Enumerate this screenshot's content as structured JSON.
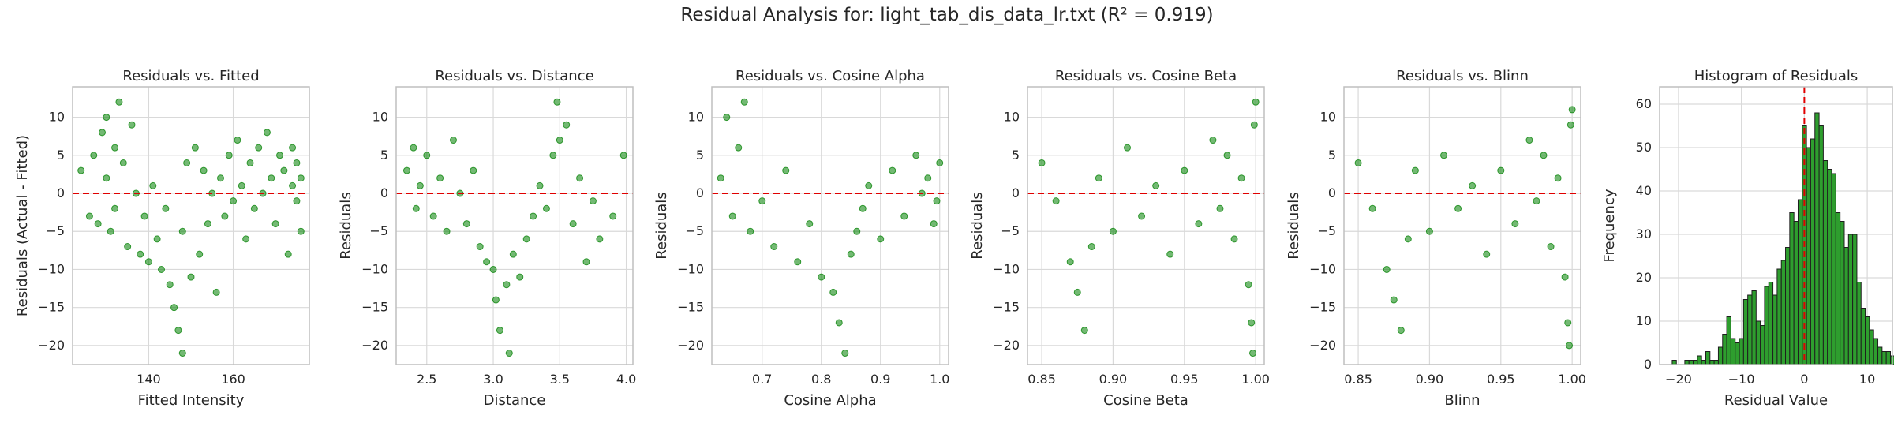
{
  "figure": {
    "suptitle": "Residual Analysis for: light_tab_dis_data_lr.txt (R² = 0.919)"
  },
  "colors": {
    "points": "#008000",
    "zero_line": "#e00000",
    "grid": "#d9d9d9",
    "spine": "#bfbfbf",
    "hist_fill": "#2e9e2e",
    "hist_edge": "#1f1f1f"
  },
  "chart_data": [
    {
      "type": "scatter",
      "title": "Residuals vs. Fitted",
      "xlabel": "Fitted Intensity",
      "ylabel": "Residuals (Actual - Fitted)",
      "xlim": [
        122,
        178
      ],
      "ylim": [
        -22.5,
        14
      ],
      "xticks": [
        140,
        160
      ],
      "yticks": [
        -20,
        -15,
        -10,
        -5,
        0,
        5,
        10
      ],
      "zero_line": 0,
      "grid": true,
      "points": [
        [
          124,
          3
        ],
        [
          126,
          -3
        ],
        [
          127,
          5
        ],
        [
          128,
          -4
        ],
        [
          129,
          8
        ],
        [
          130,
          10
        ],
        [
          130,
          2
        ],
        [
          131,
          -5
        ],
        [
          132,
          6
        ],
        [
          132,
          -2
        ],
        [
          133,
          12
        ],
        [
          134,
          4
        ],
        [
          135,
          -7
        ],
        [
          136,
          9
        ],
        [
          137,
          0
        ],
        [
          138,
          -8
        ],
        [
          139,
          -3
        ],
        [
          140,
          -9
        ],
        [
          141,
          1
        ],
        [
          142,
          -6
        ],
        [
          143,
          -10
        ],
        [
          144,
          -2
        ],
        [
          145,
          -12
        ],
        [
          146,
          -15
        ],
        [
          147,
          -18
        ],
        [
          148,
          -21
        ],
        [
          148,
          -5
        ],
        [
          149,
          4
        ],
        [
          150,
          -11
        ],
        [
          151,
          6
        ],
        [
          152,
          -8
        ],
        [
          153,
          3
        ],
        [
          154,
          -4
        ],
        [
          155,
          0
        ],
        [
          156,
          -13
        ],
        [
          157,
          2
        ],
        [
          158,
          -3
        ],
        [
          159,
          5
        ],
        [
          160,
          -1
        ],
        [
          161,
          7
        ],
        [
          162,
          1
        ],
        [
          163,
          -6
        ],
        [
          164,
          4
        ],
        [
          165,
          -2
        ],
        [
          166,
          6
        ],
        [
          167,
          0
        ],
        [
          168,
          8
        ],
        [
          169,
          2
        ],
        [
          170,
          -4
        ],
        [
          171,
          5
        ],
        [
          172,
          3
        ],
        [
          173,
          -8
        ],
        [
          174,
          1
        ],
        [
          175,
          4
        ],
        [
          176,
          -5
        ],
        [
          176,
          2
        ],
        [
          175,
          -1
        ],
        [
          174,
          6
        ]
      ]
    },
    {
      "type": "scatter",
      "title": "Residuals vs. Distance",
      "xlabel": "Distance",
      "ylabel": "Residuals",
      "xlim": [
        2.27,
        4.05
      ],
      "ylim": [
        -22.5,
        14
      ],
      "xticks": [
        2.5,
        3.0,
        3.5,
        4.0
      ],
      "yticks": [
        -20,
        -15,
        -10,
        -5,
        0,
        5,
        10
      ],
      "zero_line": 0,
      "grid": true,
      "points": [
        [
          2.35,
          3
        ],
        [
          2.4,
          6
        ],
        [
          2.42,
          -2
        ],
        [
          2.45,
          1
        ],
        [
          2.5,
          5
        ],
        [
          2.55,
          -3
        ],
        [
          2.6,
          2
        ],
        [
          2.65,
          -5
        ],
        [
          2.7,
          7
        ],
        [
          2.75,
          0
        ],
        [
          2.8,
          -4
        ],
        [
          2.85,
          3
        ],
        [
          2.9,
          -7
        ],
        [
          2.95,
          -9
        ],
        [
          3.0,
          -10
        ],
        [
          3.02,
          -14
        ],
        [
          3.05,
          -18
        ],
        [
          3.1,
          -12
        ],
        [
          3.12,
          -21
        ],
        [
          3.15,
          -8
        ],
        [
          3.2,
          -11
        ],
        [
          3.25,
          -6
        ],
        [
          3.3,
          -3
        ],
        [
          3.35,
          1
        ],
        [
          3.4,
          -2
        ],
        [
          3.45,
          5
        ],
        [
          3.48,
          12
        ],
        [
          3.5,
          7
        ],
        [
          3.55,
          9
        ],
        [
          3.6,
          -4
        ],
        [
          3.65,
          2
        ],
        [
          3.7,
          -9
        ],
        [
          3.75,
          -1
        ],
        [
          3.8,
          -6
        ],
        [
          3.9,
          -3
        ],
        [
          3.98,
          5
        ]
      ]
    },
    {
      "type": "scatter",
      "title": "Residuals vs. Cosine Alpha",
      "xlabel": "Cosine Alpha",
      "ylabel": "Residuals",
      "xlim": [
        0.615,
        1.015
      ],
      "ylim": [
        -22.5,
        14
      ],
      "xticks": [
        0.7,
        0.8,
        0.9,
        1.0
      ],
      "yticks": [
        -20,
        -15,
        -10,
        -5,
        0,
        5,
        10
      ],
      "zero_line": 0,
      "grid": true,
      "points": [
        [
          0.63,
          2
        ],
        [
          0.64,
          10
        ],
        [
          0.65,
          -3
        ],
        [
          0.66,
          6
        ],
        [
          0.67,
          12
        ],
        [
          0.68,
          -5
        ],
        [
          0.7,
          -1
        ],
        [
          0.72,
          -7
        ],
        [
          0.74,
          3
        ],
        [
          0.76,
          -9
        ],
        [
          0.78,
          -4
        ],
        [
          0.8,
          -11
        ],
        [
          0.82,
          -13
        ],
        [
          0.83,
          -17
        ],
        [
          0.84,
          -21
        ],
        [
          0.85,
          -8
        ],
        [
          0.86,
          -5
        ],
        [
          0.87,
          -2
        ],
        [
          0.88,
          1
        ],
        [
          0.9,
          -6
        ],
        [
          0.92,
          3
        ],
        [
          0.94,
          -3
        ],
        [
          0.96,
          5
        ],
        [
          0.97,
          0
        ],
        [
          0.98,
          2
        ],
        [
          0.99,
          -4
        ],
        [
          1.0,
          4
        ],
        [
          0.995,
          -1
        ]
      ]
    },
    {
      "type": "scatter",
      "title": "Residuals vs. Cosine Beta",
      "xlabel": "Cosine Beta",
      "ylabel": "Residuals",
      "xlim": [
        0.84,
        1.006
      ],
      "ylim": [
        -22.5,
        14
      ],
      "xticks": [
        0.85,
        0.9,
        0.95,
        1.0
      ],
      "yticks": [
        -20,
        -15,
        -10,
        -5,
        0,
        5,
        10
      ],
      "zero_line": 0,
      "grid": true,
      "points": [
        [
          0.85,
          4
        ],
        [
          0.86,
          -1
        ],
        [
          0.87,
          -9
        ],
        [
          0.875,
          -13
        ],
        [
          0.88,
          -18
        ],
        [
          0.885,
          -7
        ],
        [
          0.89,
          2
        ],
        [
          0.9,
          -5
        ],
        [
          0.91,
          6
        ],
        [
          0.92,
          -3
        ],
        [
          0.93,
          1
        ],
        [
          0.94,
          -8
        ],
        [
          0.95,
          3
        ],
        [
          0.96,
          -4
        ],
        [
          0.97,
          7
        ],
        [
          0.975,
          -2
        ],
        [
          0.98,
          5
        ],
        [
          0.985,
          -6
        ],
        [
          0.99,
          2
        ],
        [
          0.995,
          -12
        ],
        [
          0.997,
          -17
        ],
        [
          0.998,
          -21
        ],
        [
          0.999,
          9
        ],
        [
          1.0,
          12
        ]
      ]
    },
    {
      "type": "scatter",
      "title": "Residuals vs. Blinn",
      "xlabel": "Blinn",
      "ylabel": "Residuals",
      "xlim": [
        0.84,
        1.006
      ],
      "ylim": [
        -22.5,
        14
      ],
      "xticks": [
        0.85,
        0.9,
        0.95,
        1.0
      ],
      "yticks": [
        -20,
        -15,
        -10,
        -5,
        0,
        5,
        10
      ],
      "zero_line": 0,
      "grid": true,
      "points": [
        [
          0.85,
          4
        ],
        [
          0.86,
          -2
        ],
        [
          0.87,
          -10
        ],
        [
          0.875,
          -14
        ],
        [
          0.88,
          -18
        ],
        [
          0.885,
          -6
        ],
        [
          0.89,
          3
        ],
        [
          0.9,
          -5
        ],
        [
          0.91,
          5
        ],
        [
          0.92,
          -2
        ],
        [
          0.93,
          1
        ],
        [
          0.94,
          -8
        ],
        [
          0.95,
          3
        ],
        [
          0.96,
          -4
        ],
        [
          0.97,
          7
        ],
        [
          0.975,
          -1
        ],
        [
          0.98,
          5
        ],
        [
          0.985,
          -7
        ],
        [
          0.99,
          2
        ],
        [
          0.995,
          -11
        ],
        [
          0.997,
          -17
        ],
        [
          0.998,
          -20
        ],
        [
          0.999,
          9
        ],
        [
          1.0,
          11
        ]
      ]
    },
    {
      "type": "bar",
      "title": "Histogram of Residuals",
      "xlabel": "Residual Value",
      "ylabel": "Frequency",
      "xlim": [
        -23,
        14
      ],
      "ylim": [
        0,
        64
      ],
      "xticks": [
        -20,
        -10,
        0,
        10
      ],
      "yticks": [
        0,
        10,
        20,
        30,
        40,
        50,
        60
      ],
      "zero_line": 0,
      "grid": true,
      "bin_width": 0.667,
      "bin_start": -21,
      "counts": [
        1,
        0,
        0,
        1,
        1,
        1,
        2,
        1,
        3,
        1,
        1,
        4,
        7,
        11,
        6,
        5,
        6,
        15,
        16,
        17,
        10,
        9,
        18,
        19,
        16,
        22,
        24,
        27,
        35,
        33,
        38,
        55,
        50,
        52,
        58,
        55,
        47,
        45,
        44,
        35,
        33,
        27,
        30,
        30,
        19,
        13,
        11,
        8,
        6,
        4,
        3,
        3,
        2,
        2,
        1
      ]
    }
  ]
}
